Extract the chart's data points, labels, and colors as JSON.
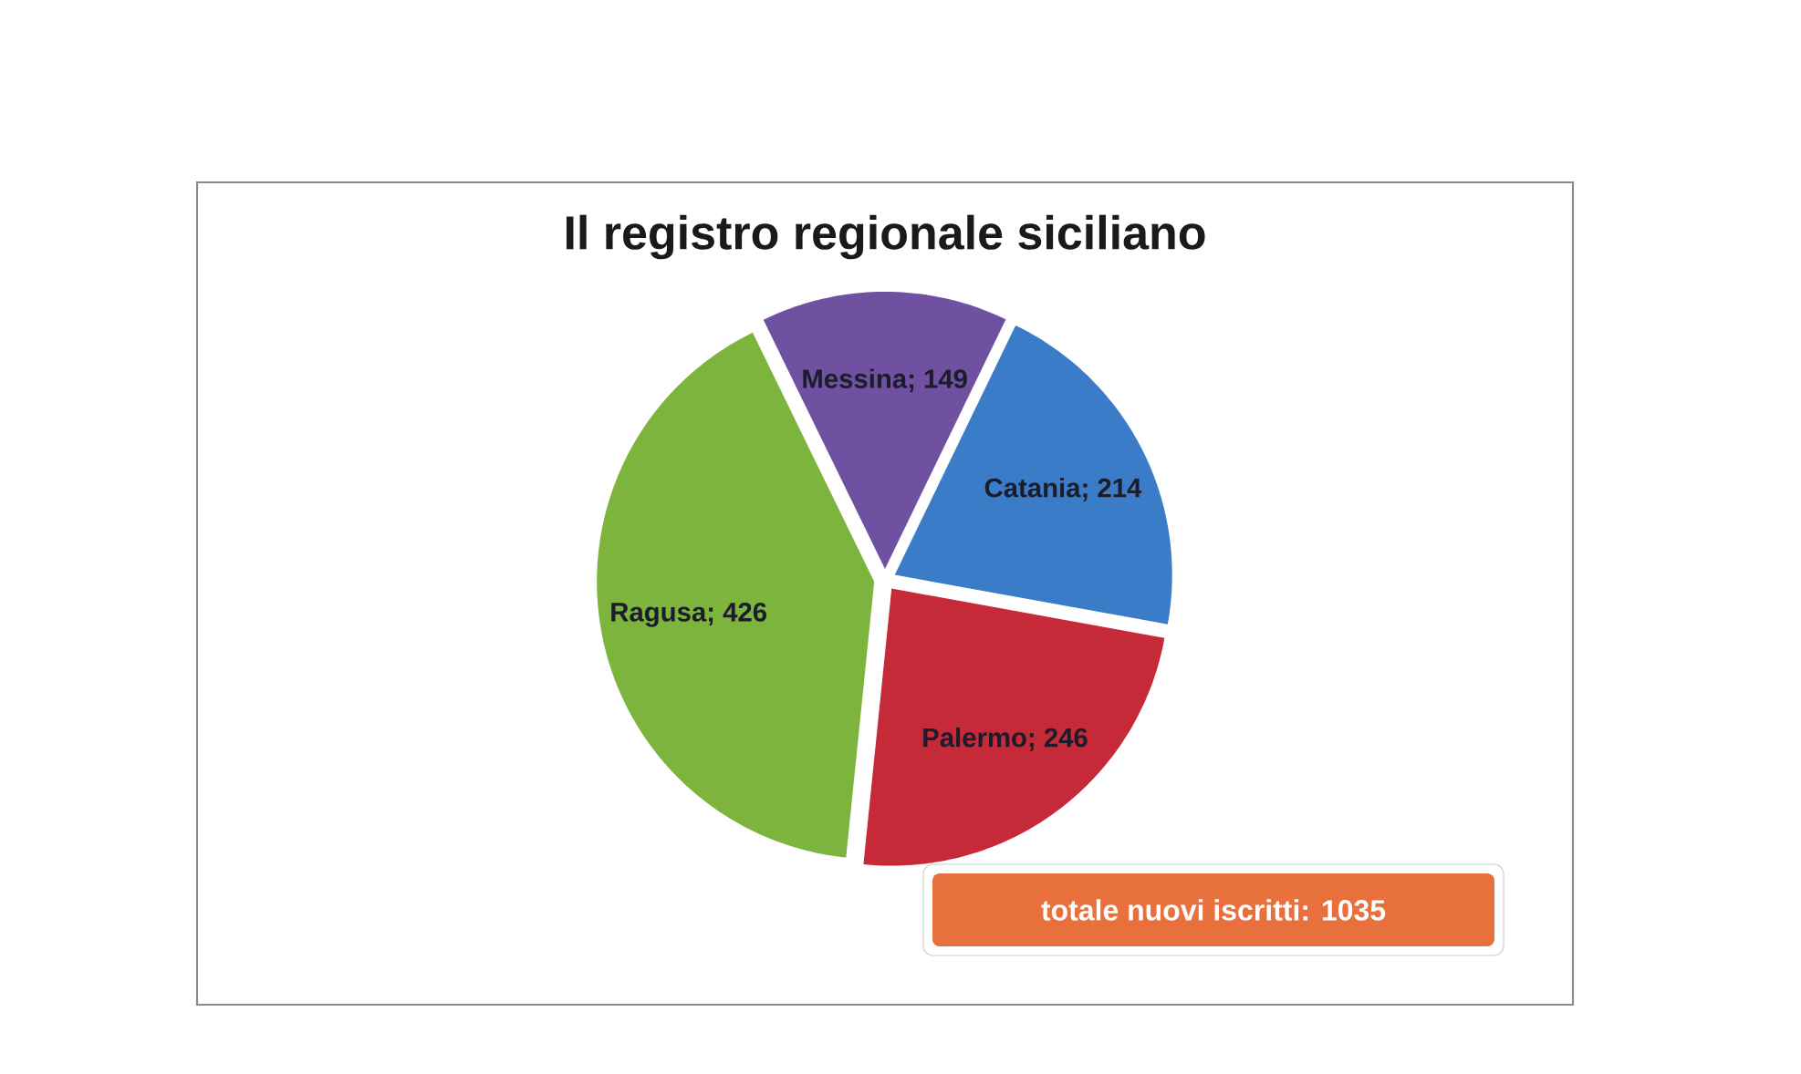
{
  "chart_data": {
    "type": "pie",
    "title": "Il registro regionale siciliano",
    "categories": [
      "Messina",
      "Catania",
      "Palermo",
      "Ragusa"
    ],
    "values": [
      149,
      214,
      246,
      426
    ],
    "colors": [
      "#6f50a1",
      "#3a7cc8",
      "#c62a38",
      "#7db43e"
    ],
    "value_labels": [
      "; 149",
      "; 214",
      "; 246",
      "; 426"
    ],
    "annotations": [
      "totale nuovi iscritti: 1035"
    ]
  }
}
